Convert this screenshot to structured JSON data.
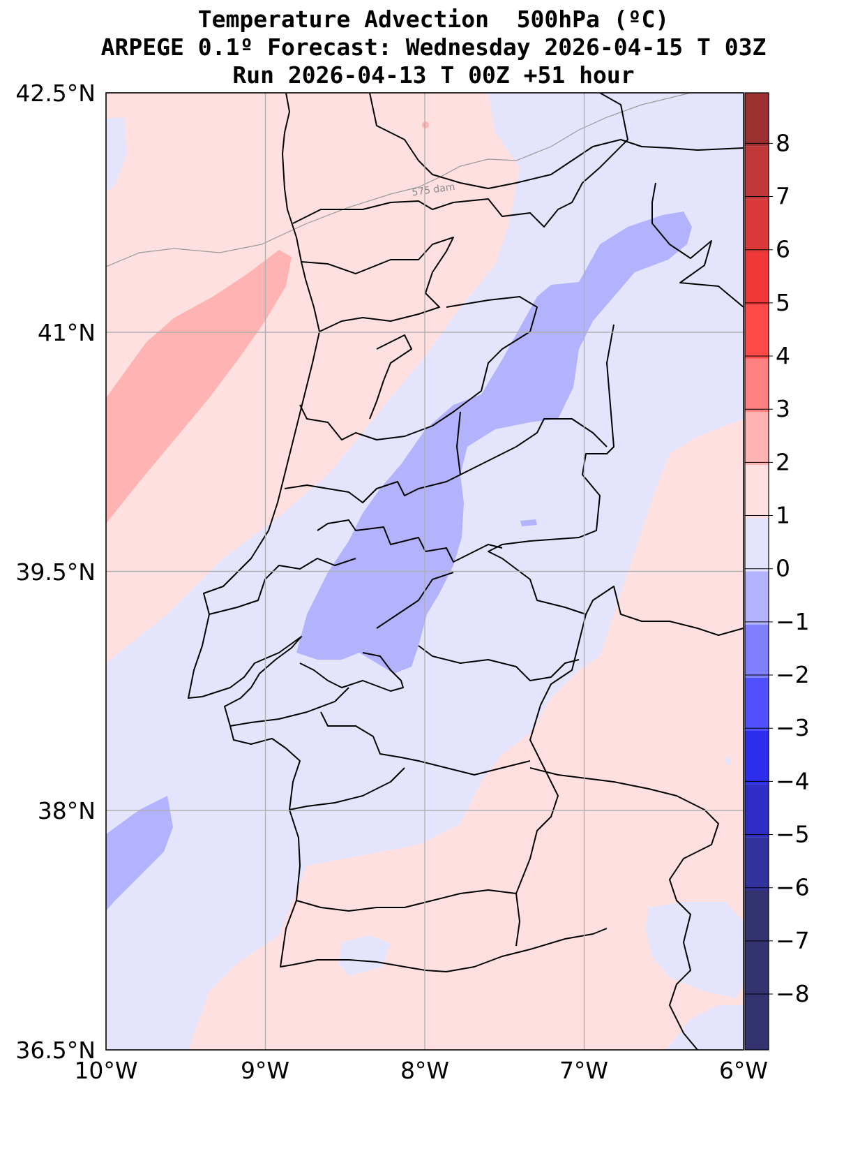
{
  "title": {
    "line1": "Temperature Advection  500hPa (ºC)",
    "line2": "ARPEGE 0.1º Forecast: Wednesday 2026-04-15 T 03Z",
    "line3": "Run 2026-04-13 T 00Z +51 hour"
  },
  "map": {
    "lat_range": [
      36.5,
      42.5
    ],
    "lon_range": [
      -10,
      -6
    ],
    "lat_ticks": [
      "42.5°N",
      "41°N",
      "39.5°N",
      "38°N",
      "36.5°N"
    ],
    "lon_ticks": [
      "10°W",
      "9°W",
      "8°W",
      "7°W",
      "6°W"
    ],
    "grid": true,
    "contour_label": "575 dam"
  },
  "colorbar": {
    "ticks": [
      "8",
      "7",
      "6",
      "5",
      "4",
      "3",
      "2",
      "1",
      "0",
      "−1",
      "−2",
      "−3",
      "−4",
      "−5",
      "−6",
      "−7",
      "−8"
    ],
    "colors": [
      "#9b3030",
      "#c03838",
      "#dc3a3a",
      "#f03838",
      "#ff4a4a",
      "#ff8080",
      "#ffb3b3",
      "#ffe0e0",
      "#e4e4fd",
      "#b3b3fd",
      "#8080ff",
      "#5050ff",
      "#2d2dee",
      "#2f2fc8",
      "#32329c",
      "#333370"
    ]
  },
  "legend_colors": {
    "pos_0_1": "#ffe0e0",
    "pos_1_2": "#ffb3b3",
    "neg_0_1": "#e4e4fd",
    "neg_1_2": "#b3b3fd"
  }
}
